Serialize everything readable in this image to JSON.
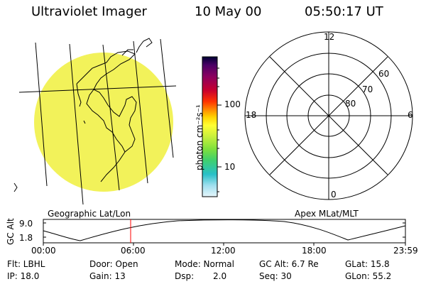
{
  "header": {
    "instrument": "Ultraviolet Imager",
    "date": "10 May 00",
    "time": "05:50:17 UT"
  },
  "colorbar": {
    "unit_label": "photon cm⁻²s⁻¹",
    "ticks": [
      "100",
      "10"
    ],
    "colors": [
      "#000033",
      "#4b0066",
      "#8a0060",
      "#c8002e",
      "#ff3300",
      "#ff8c00",
      "#ffd200",
      "#ffff33",
      "#c8f03c",
      "#7ee03c",
      "#3fd06e",
      "#28c0c8",
      "#a0dfef",
      "#e6f6fb"
    ]
  },
  "geo_panel": {
    "label": "Geographic Lat/Lon",
    "fill_color": "#f2f25a",
    "edge_color": "#7fd6e6"
  },
  "apex_panel": {
    "label": "Apex MLat/MLT",
    "mlt_labels": {
      "top": "12",
      "left": "18",
      "right": "6",
      "bottom": "0"
    },
    "lat_labels": [
      "60",
      "70",
      "80"
    ]
  },
  "altitude_plot": {
    "ylabel": "GC Alt",
    "yticks": [
      "9.0",
      "1.8"
    ],
    "xticks": [
      "00:00",
      "06:00",
      "12:00",
      "18:00",
      "23:59"
    ],
    "marker_color": "#ff0000"
  },
  "info": {
    "flt": "Flt: LBHL",
    "door": "Door: Open",
    "mode": "Mode: Normal",
    "gc_alt": "GC Alt: 6.7 Re",
    "glat": "GLat: 15.8",
    "ip": "IP: 18.0",
    "gain": "Gain: 13",
    "dsp": "Dsp:",
    "dsp_val": "2.0",
    "seq": "Seq: 30",
    "glon": "GLon: 55.2"
  }
}
